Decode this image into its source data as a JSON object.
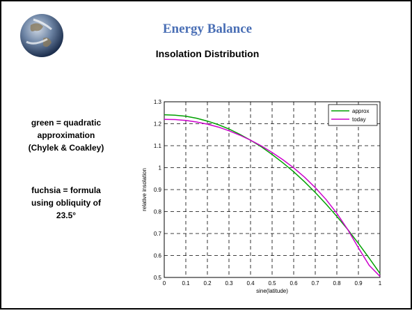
{
  "slide": {
    "title": "Energy Balance",
    "subtitle": "Insolation Distribution",
    "notes": [
      [
        "green = quadratic",
        "approximation",
        "(Chylek & Coakley)"
      ],
      [
        "fuchsia = formula",
        "using obliquity of",
        "23.5°"
      ]
    ]
  },
  "chart_data": {
    "type": "line",
    "xlabel": "sine(latitude)",
    "ylabel": "relative insolation",
    "x": [
      0,
      0.05,
      0.1,
      0.15,
      0.2,
      0.25,
      0.3,
      0.35,
      0.4,
      0.45,
      0.5,
      0.55,
      0.6,
      0.65,
      0.7,
      0.75,
      0.8,
      0.85,
      0.9,
      0.95,
      1
    ],
    "series": [
      {
        "name": "approx",
        "color": "#00a000",
        "values": [
          1.241,
          1.239,
          1.234,
          1.225,
          1.212,
          1.196,
          1.176,
          1.152,
          1.125,
          1.095,
          1.06,
          1.022,
          0.981,
          0.936,
          0.887,
          0.834,
          0.778,
          0.719,
          0.655,
          0.588,
          0.518
        ]
      },
      {
        "name": "today",
        "color": "#cc00cc",
        "values": [
          1.22,
          1.219,
          1.215,
          1.208,
          1.198,
          1.185,
          1.168,
          1.148,
          1.125,
          1.099,
          1.069,
          1.036,
          0.999,
          0.957,
          0.909,
          0.855,
          0.792,
          0.719,
          0.635,
          0.555,
          0.505
        ]
      }
    ],
    "xlim": [
      0,
      1
    ],
    "xticks": [
      0,
      0.1,
      0.2,
      0.3,
      0.4,
      0.5,
      0.6,
      0.7,
      0.8,
      0.9,
      1
    ],
    "ylim": [
      0.5,
      1.3
    ],
    "yticks": [
      0.5,
      0.6,
      0.7,
      0.8,
      0.9,
      1,
      1.1,
      1.2,
      1.3
    ],
    "grid": true,
    "legend": "upper right"
  }
}
